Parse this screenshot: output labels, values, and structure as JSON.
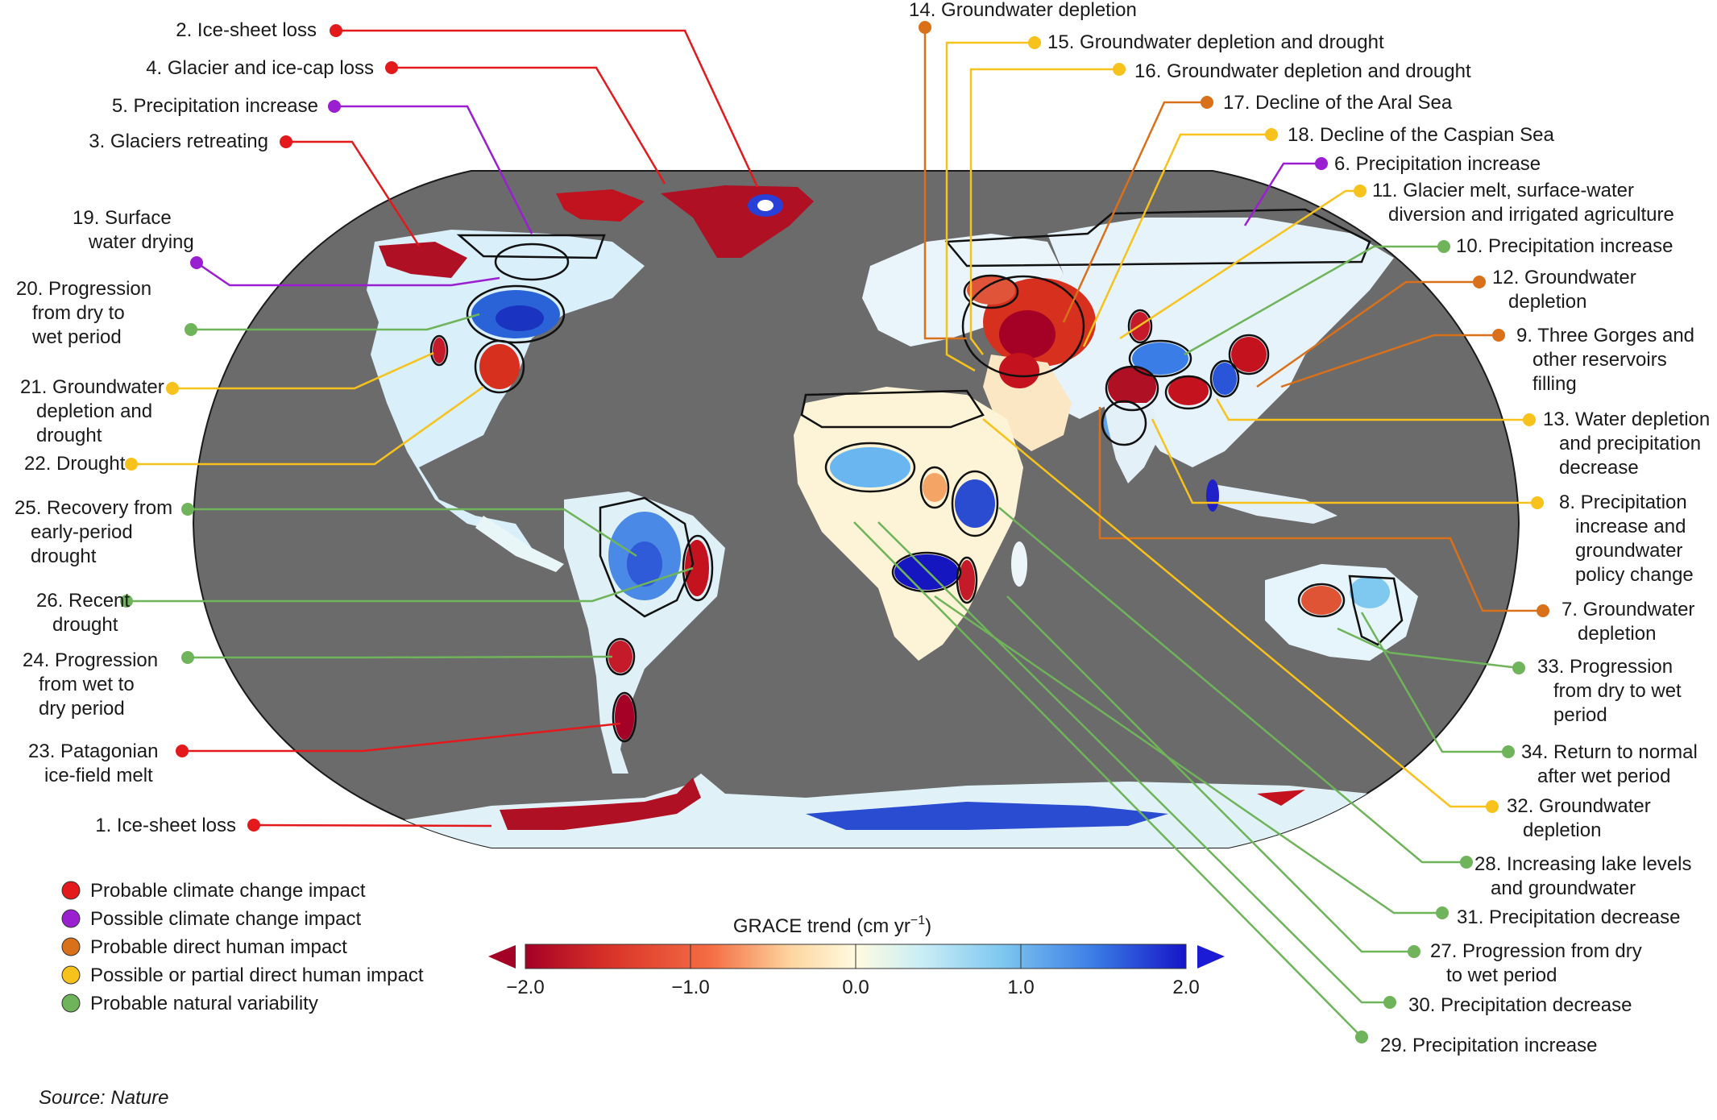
{
  "colors": {
    "probable_climate": "#e3191c",
    "possible_climate": "#9a1fd0",
    "probable_human": "#d9701a",
    "possible_human": "#f6c21b",
    "natural_variability": "#6fb35a",
    "ocean": "#707070",
    "colorbar_low": "#a50026",
    "colorbar_high": "#1b1bd6"
  },
  "legend": [
    {
      "label": "Probable climate change impact",
      "category": "probable_climate"
    },
    {
      "label": "Possible climate change impact",
      "category": "possible_climate"
    },
    {
      "label": "Probable direct human impact",
      "category": "probable_human"
    },
    {
      "label": "Possible or partial direct human impact",
      "category": "possible_human"
    },
    {
      "label": "Probable natural variability",
      "category": "natural_variability"
    }
  ],
  "colorbar": {
    "title_main": "GRACE trend (cm yr",
    "title_sup": "−1",
    "title_end": ")",
    "ticks": [
      "−2.0",
      "−1.0",
      "0.0",
      "1.0",
      "2.0"
    ],
    "range": [
      -2.0,
      2.0
    ]
  },
  "source": {
    "prefix": "Source",
    "name": ": Nature"
  },
  "annotations": [
    {
      "id": 1,
      "category": "probable_climate",
      "lines": [
        "1. Ice-sheet loss"
      ]
    },
    {
      "id": 2,
      "category": "probable_climate",
      "lines": [
        "2. Ice-sheet loss"
      ]
    },
    {
      "id": 3,
      "category": "probable_climate",
      "lines": [
        "3. Glaciers retreating"
      ]
    },
    {
      "id": 4,
      "category": "probable_climate",
      "lines": [
        "4. Glacier and ice-cap loss"
      ]
    },
    {
      "id": 5,
      "category": "possible_climate",
      "lines": [
        "5. Precipitation increase"
      ]
    },
    {
      "id": 6,
      "category": "possible_climate",
      "lines": [
        "6. Precipitation increase"
      ]
    },
    {
      "id": 7,
      "category": "probable_human",
      "lines": [
        "7. Groundwater",
        "depletion"
      ]
    },
    {
      "id": 8,
      "category": "possible_human",
      "lines": [
        "8. Precipitation",
        "increase and",
        "groundwater",
        "policy change"
      ]
    },
    {
      "id": 9,
      "category": "probable_human",
      "lines": [
        "9. Three Gorges and",
        "other reservoirs",
        "filling"
      ]
    },
    {
      "id": 10,
      "category": "natural_variability",
      "lines": [
        "10. Precipitation increase"
      ]
    },
    {
      "id": 11,
      "category": "possible_human",
      "lines": [
        "11. Glacier melt, surface-water",
        "diversion and irrigated agriculture"
      ]
    },
    {
      "id": 12,
      "category": "probable_human",
      "lines": [
        "12. Groundwater",
        "depletion"
      ]
    },
    {
      "id": 13,
      "category": "possible_human",
      "lines": [
        "13. Water depletion",
        "and precipitation",
        "decrease"
      ]
    },
    {
      "id": 14,
      "category": "probable_human",
      "lines": [
        "14. Groundwater depletion"
      ]
    },
    {
      "id": 15,
      "category": "possible_human",
      "lines": [
        "15. Groundwater depletion and drought"
      ]
    },
    {
      "id": 16,
      "category": "possible_human",
      "lines": [
        "16. Groundwater depletion and drought"
      ]
    },
    {
      "id": 17,
      "category": "probable_human",
      "lines": [
        "17. Decline of the Aral Sea"
      ]
    },
    {
      "id": 18,
      "category": "possible_human",
      "lines": [
        "18. Decline of the Caspian Sea"
      ]
    },
    {
      "id": 19,
      "category": "possible_climate",
      "lines": [
        "19. Surface",
        "water drying"
      ]
    },
    {
      "id": 20,
      "category": "natural_variability",
      "lines": [
        "20. Progression",
        "from dry to",
        "wet period"
      ]
    },
    {
      "id": 21,
      "category": "possible_human",
      "lines": [
        "21. Groundwater",
        "depletion and",
        "drought"
      ]
    },
    {
      "id": 22,
      "category": "possible_human",
      "lines": [
        "22. Drought"
      ]
    },
    {
      "id": 23,
      "category": "probable_climate",
      "lines": [
        "23. Patagonian",
        "ice-field melt"
      ]
    },
    {
      "id": 24,
      "category": "natural_variability",
      "lines": [
        "24. Progression",
        "from wet to",
        "dry period"
      ]
    },
    {
      "id": 25,
      "category": "natural_variability",
      "lines": [
        "25. Recovery from",
        "early-period",
        "drought"
      ]
    },
    {
      "id": 26,
      "category": "natural_variability",
      "lines": [
        "26. Recent",
        "drought"
      ]
    },
    {
      "id": 27,
      "category": "natural_variability",
      "lines": [
        "27. Progression from dry",
        "to wet period"
      ]
    },
    {
      "id": 28,
      "category": "natural_variability",
      "lines": [
        "28. Increasing lake levels",
        "and groundwater"
      ]
    },
    {
      "id": 29,
      "category": "natural_variability",
      "lines": [
        "29. Precipitation increase"
      ]
    },
    {
      "id": 30,
      "category": "natural_variability",
      "lines": [
        "30. Precipitation decrease"
      ]
    },
    {
      "id": 31,
      "category": "natural_variability",
      "lines": [
        "31. Precipitation decrease"
      ]
    },
    {
      "id": 32,
      "category": "possible_human",
      "lines": [
        "32. Groundwater",
        "depletion"
      ]
    },
    {
      "id": 33,
      "category": "natural_variability",
      "lines": [
        "33. Progression",
        "from dry to wet",
        "period"
      ]
    },
    {
      "id": 34,
      "category": "natural_variability",
      "lines": [
        "34. Return to normal",
        "after wet period"
      ]
    }
  ]
}
